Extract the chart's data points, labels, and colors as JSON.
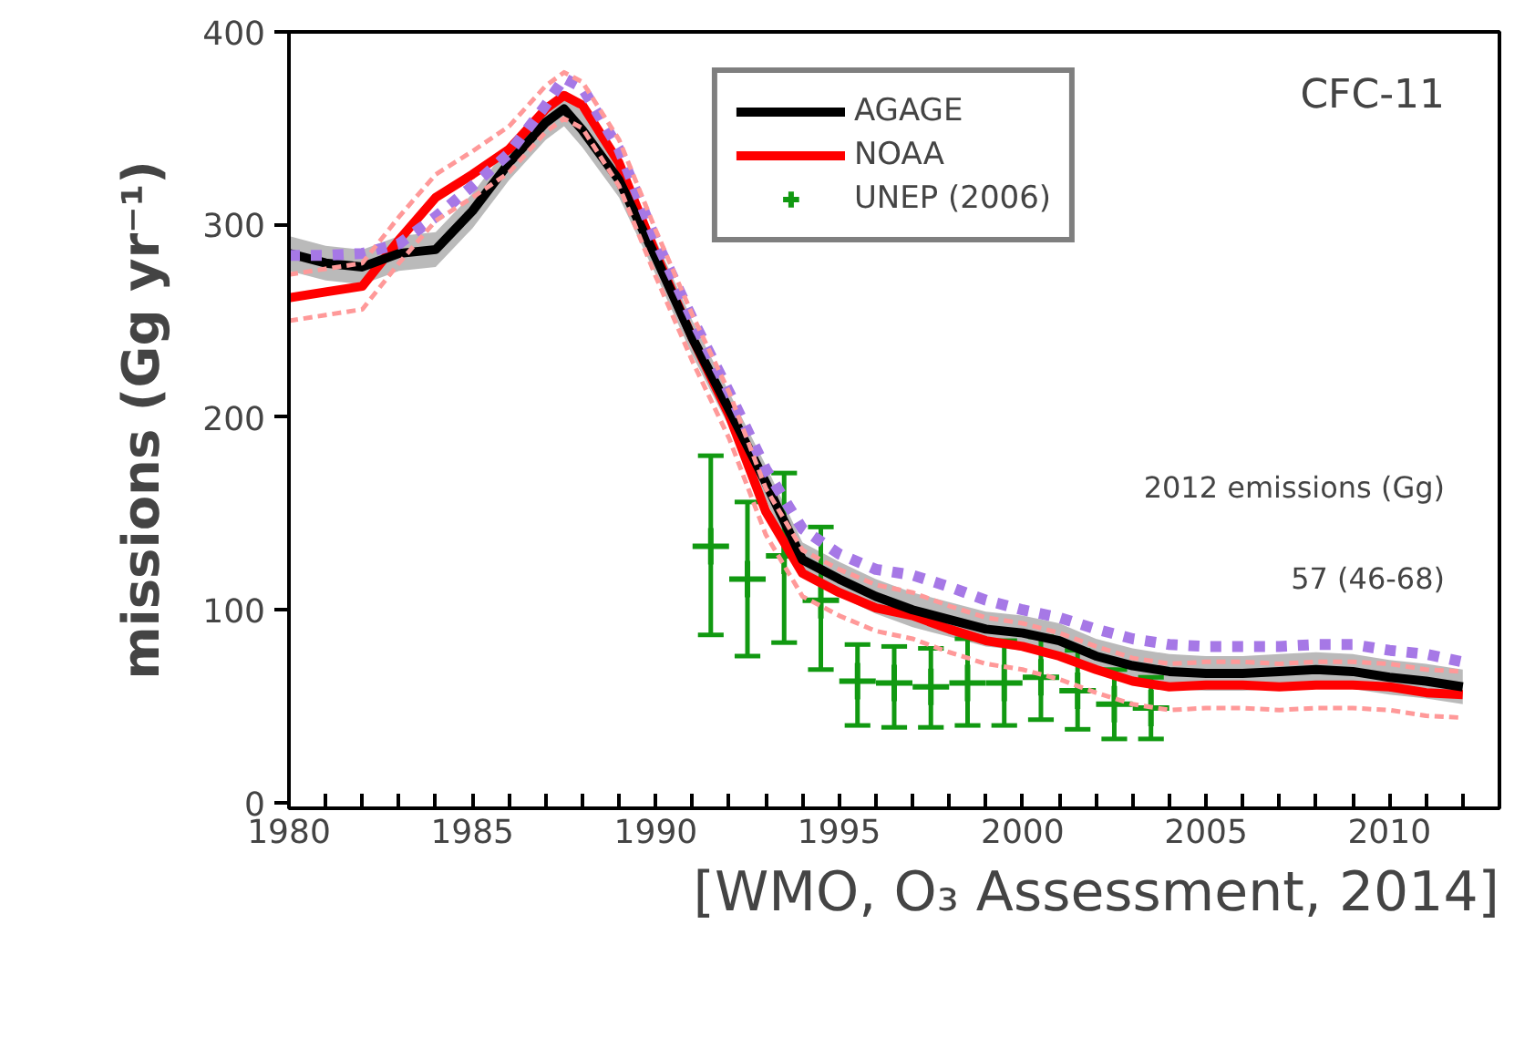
{
  "chart_data": {
    "type": "line",
    "ylabel": "missions (Gg yr⁻¹)",
    "annotations": [
      "CFC-11",
      "2012 emissions (Gg)",
      "57 (46-68)",
      "[WMO, O₃ Assessment, 2014]"
    ],
    "xlim": [
      1980,
      2013
    ],
    "ylim": [
      -3,
      400
    ],
    "xticks": [
      1980,
      {
        "value": 1981,
        "label": null
      },
      {
        "value": 1982,
        "label": null
      },
      {
        "value": 1983,
        "label": null
      },
      {
        "value": 1984,
        "label": null
      },
      1985,
      {
        "value": 1986,
        "label": null
      },
      {
        "value": 1987,
        "label": null
      },
      {
        "value": 1988,
        "label": null
      },
      {
        "value": 1989,
        "label": null
      },
      1990,
      {
        "value": 1991,
        "label": null
      },
      {
        "value": 1992,
        "label": null
      },
      {
        "value": 1993,
        "label": null
      },
      {
        "value": 1994,
        "label": null
      },
      1995,
      {
        "value": 1996,
        "label": null
      },
      {
        "value": 1997,
        "label": null
      },
      {
        "value": 1998,
        "label": null
      },
      {
        "value": 1999,
        "label": null
      },
      2000,
      {
        "value": 2001,
        "label": null
      },
      {
        "value": 2002,
        "label": null
      },
      {
        "value": 2003,
        "label": null
      },
      {
        "value": 2004,
        "label": null
      },
      2005,
      {
        "value": 2006,
        "label": null
      },
      {
        "value": 2007,
        "label": null
      },
      {
        "value": 2008,
        "label": null
      },
      {
        "value": 2009,
        "label": null
      },
      2010,
      {
        "value": 2011,
        "label": null
      },
      {
        "value": 2012,
        "label": null
      }
    ],
    "yticks": [
      0,
      100,
      200,
      300,
      400
    ],
    "grid": false,
    "legend": "top",
    "x": [
      1980,
      1981,
      1982,
      1983,
      1984,
      1985,
      1986,
      1987,
      1987.5,
      1988,
      1989,
      1990,
      1991,
      1992,
      1993,
      1994,
      1995,
      1996,
      1997,
      1998,
      1999,
      2000,
      2001,
      2002,
      2003,
      2004,
      2005,
      2006,
      2007,
      2008,
      2009,
      2010,
      2011,
      2012
    ],
    "series": [
      {
        "color": "#ff9999",
        "line_style": "dashed",
        "values": [
          274,
          277,
          280,
          304,
          326,
          338,
          351,
          372,
          379,
          374,
          344,
          297,
          253,
          213,
          163,
          131,
          121,
          113,
          109,
          102,
          96,
          93,
          88,
          81,
          75,
          72,
          73,
          73,
          72,
          73,
          73,
          72,
          69,
          68
        ]
      },
      {
        "color": "#ff9999",
        "line_style": "dashed",
        "values": [
          250,
          253,
          256,
          280,
          302,
          314,
          327,
          348,
          355,
          350,
          320,
          273,
          229,
          189,
          139,
          107,
          97,
          89,
          85,
          78,
          72,
          69,
          64,
          57,
          51,
          48,
          49,
          49,
          48,
          49,
          49,
          48,
          45,
          44
        ]
      },
      {
        "name": "AGAGE",
        "color": "#000000",
        "values": [
          285,
          280,
          278,
          285,
          287,
          307,
          332,
          353,
          360,
          349,
          323,
          283,
          241,
          204,
          166,
          126,
          116,
          107,
          100,
          95,
          90,
          88,
          84,
          76,
          71,
          68,
          67,
          67,
          68,
          69,
          68,
          65,
          63,
          60
        ],
        "lower": [
          276,
          271,
          269,
          276,
          278,
          298,
          323,
          344,
          351,
          340,
          314,
          274,
          232,
          195,
          157,
          117,
          107,
          98,
          91,
          86,
          81,
          79,
          75,
          67,
          62,
          59,
          58,
          58,
          59,
          60,
          59,
          56,
          54,
          51
        ],
        "upper": [
          294,
          289,
          287,
          294,
          296,
          316,
          341,
          362,
          369,
          358,
          332,
          292,
          250,
          213,
          175,
          135,
          125,
          116,
          109,
          104,
          99,
          97,
          93,
          85,
          80,
          77,
          76,
          76,
          77,
          78,
          77,
          74,
          72,
          69
        ]
      },
      {
        "name": "NOAA",
        "color": "#ff0000",
        "values": [
          262,
          265,
          268,
          292,
          314,
          326,
          339,
          360,
          367,
          362,
          332,
          285,
          241,
          201,
          151,
          119,
          109,
          101,
          97,
          90,
          84,
          81,
          76,
          69,
          63,
          60,
          61,
          61,
          60,
          61,
          61,
          60,
          57,
          56
        ]
      },
      {
        "color": "#a678e6",
        "line_style": "dashed",
        "values": [
          284,
          284,
          285,
          290,
          304,
          320,
          337,
          362,
          376,
          371,
          339,
          292,
          251,
          213,
          173,
          142,
          129,
          121,
          118,
          112,
          105,
          100,
          96,
          90,
          85,
          82,
          81,
          81,
          81,
          82,
          82,
          79,
          77,
          73
        ]
      },
      {
        "name": "UNEP (2006)",
        "type": "scatter",
        "marker": "cross",
        "color": "#119911",
        "x": [
          1991.5,
          1992.5,
          1993.5,
          1994.5,
          1995.5,
          1996.5,
          1997.5,
          1998.5,
          1999.5,
          2000.5,
          2001.5,
          2002.5,
          2003.5
        ],
        "values": [
          133,
          116,
          128,
          105,
          63,
          62,
          60,
          62,
          62,
          65,
          58,
          51,
          49
        ],
        "errors": [
          [
            87,
            180
          ],
          [
            76,
            156
          ],
          [
            83,
            171
          ],
          [
            69,
            143
          ],
          [
            40,
            82
          ],
          [
            39,
            81
          ],
          [
            39,
            80
          ],
          [
            40,
            85
          ],
          [
            40,
            84
          ],
          [
            43,
            86
          ],
          [
            38,
            79
          ],
          [
            33,
            69
          ],
          [
            33,
            65
          ]
        ]
      }
    ]
  }
}
